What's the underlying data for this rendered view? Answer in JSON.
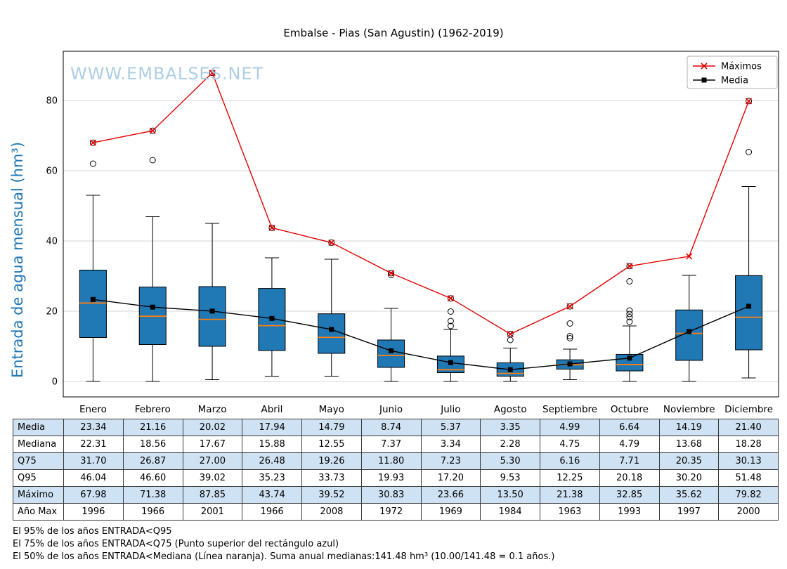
{
  "title": "Embalse - Pias (San Agustin) (1962-2019)",
  "watermark": "WWW.EMBALSES.NET",
  "chart_data": {
    "type": "boxplot",
    "categories": [
      "Enero",
      "Febrero",
      "Marzo",
      "Abril",
      "Mayo",
      "Junio",
      "Julio",
      "Agosto",
      "Septiembre",
      "Octubre",
      "Noviembre",
      "Diciembre"
    ],
    "ylabel": "Entrada de agua mensual (hm³)",
    "ylim": [
      -4.4,
      93.6
    ],
    "yticks": [
      0,
      20,
      40,
      60,
      80
    ],
    "grid": "horizontal",
    "legend_position": "top-right",
    "colors": {
      "box_fill": "#2078b4",
      "median": "#ff7f0e",
      "maximos_line": "#e50000",
      "media_line": "#000000",
      "watermark": "#a9cce3",
      "ylabel": "#1f77b4",
      "table_accent": "#cfe2f3"
    },
    "series": [
      {
        "name": "Máximos",
        "color": "#e50000",
        "marker": "x",
        "values": [
          67.98,
          71.38,
          87.85,
          43.74,
          39.52,
          30.83,
          23.66,
          13.5,
          21.38,
          32.85,
          35.62,
          79.82
        ]
      },
      {
        "name": "Media",
        "color": "#000000",
        "marker": "square",
        "values": [
          23.34,
          21.16,
          20.02,
          17.94,
          14.79,
          8.74,
          5.37,
          3.35,
          4.99,
          6.64,
          14.19,
          21.4
        ]
      }
    ],
    "box": {
      "q25": [
        12.5,
        10.5,
        10.0,
        8.8,
        8.0,
        4.0,
        2.5,
        1.5,
        3.5,
        3.0,
        6.0,
        9.0
      ],
      "median": [
        22.31,
        18.56,
        17.67,
        15.88,
        12.55,
        7.37,
        3.34,
        2.28,
        4.75,
        4.79,
        13.68,
        18.28
      ],
      "q75": [
        31.7,
        26.87,
        27.0,
        26.48,
        19.26,
        11.8,
        7.23,
        5.3,
        6.16,
        7.71,
        20.35,
        30.13
      ],
      "whisker_low": [
        0,
        0,
        0.5,
        1.5,
        1.5,
        0,
        0,
        0,
        0.5,
        0,
        0,
        1.0
      ],
      "whisker_high": [
        53.0,
        46.9,
        45.0,
        35.2,
        34.8,
        20.8,
        14.8,
        9.5,
        9.2,
        15.8,
        30.2,
        55.5
      ],
      "outliers": [
        [
          62.0,
          67.98
        ],
        [
          63.0,
          71.38
        ],
        [
          87.85
        ],
        [
          43.74
        ],
        [
          39.52
        ],
        [
          30.3,
          30.83
        ],
        [
          15.8,
          17.2,
          19.9,
          23.66
        ],
        [
          11.8,
          13.5
        ],
        [
          12.3,
          12.9,
          16.5,
          21.38
        ],
        [
          17.0,
          18.3,
          19.2,
          20.2,
          28.5,
          32.85
        ],
        [],
        [
          65.3,
          79.82
        ]
      ]
    }
  },
  "table": {
    "row_labels": [
      "Media",
      "Mediana",
      "Q75",
      "Q95",
      "Máximo",
      "Año Max"
    ],
    "rows": [
      [
        "23.34",
        "21.16",
        "20.02",
        "17.94",
        "14.79",
        "8.74",
        "5.37",
        "3.35",
        "4.99",
        "6.64",
        "14.19",
        "21.40"
      ],
      [
        "22.31",
        "18.56",
        "17.67",
        "15.88",
        "12.55",
        "7.37",
        "3.34",
        "2.28",
        "4.75",
        "4.79",
        "13.68",
        "18.28"
      ],
      [
        "31.70",
        "26.87",
        "27.00",
        "26.48",
        "19.26",
        "11.80",
        "7.23",
        "5.30",
        "6.16",
        "7.71",
        "20.35",
        "30.13"
      ],
      [
        "46.04",
        "46.60",
        "39.02",
        "35.23",
        "33.73",
        "19.93",
        "17.20",
        "9.53",
        "12.25",
        "20.18",
        "30.20",
        "51.48"
      ],
      [
        "67.98",
        "71.38",
        "87.85",
        "43.74",
        "39.52",
        "30.83",
        "23.66",
        "13.50",
        "21.38",
        "32.85",
        "35.62",
        "79.82"
      ],
      [
        "1996",
        "1966",
        "2001",
        "1966",
        "2008",
        "1972",
        "1969",
        "1984",
        "1963",
        "1993",
        "1997",
        "2000"
      ]
    ]
  },
  "footnotes": [
    "El 95% de los años ENTRADA<Q95",
    "El 75% de los años ENTRADA<Q75 (Punto superior del rectángulo azul)",
    "El 50% de los años ENTRADA<Mediana (Línea naranja). Suma anual medianas:141.48 hm³ (10.00/141.48 = 0.1 años.)"
  ]
}
